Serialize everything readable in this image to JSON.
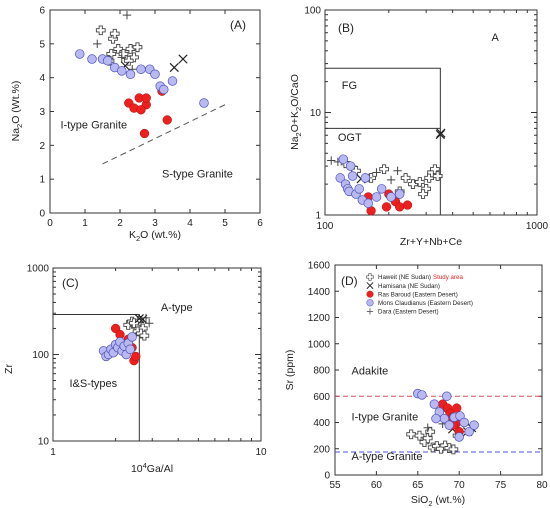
{
  "chart_data": [
    {
      "panel": "A",
      "type": "scatter",
      "panel_label": "(A)",
      "xlabel": "K2O (wt.%)",
      "xlabel_main": "K",
      "xlabel_sub": "2",
      "xlabel_post": "O (wt.%)",
      "ylabel": "Na2O (Wt.%)",
      "ylabel_main": "Na",
      "ylabel_sub": "2",
      "ylabel_post": "O (Wt.%)",
      "xlim": [
        0,
        6
      ],
      "ylim": [
        0,
        6
      ],
      "xticks": [
        "0",
        "1",
        "2",
        "3",
        "4",
        "5",
        "6"
      ],
      "yticks": [
        "0",
        "1",
        "2",
        "3",
        "4",
        "5",
        "6"
      ],
      "annotations": [
        {
          "text": "I-type Granite",
          "x": 0.3,
          "y": 2.5
        },
        {
          "text": "S-type Granite",
          "x": 3.2,
          "y": 1.05
        }
      ],
      "boundary": [
        [
          1.5,
          1.45
        ],
        [
          5.0,
          3.2
        ]
      ],
      "series": [
        {
          "marker": "hawe",
          "points": [
            [
              1.45,
              5.4
            ],
            [
              1.8,
              5.15
            ],
            [
              1.75,
              4.7
            ],
            [
              1.85,
              5.3
            ],
            [
              1.95,
              4.85
            ],
            [
              2.1,
              4.7
            ],
            [
              2.3,
              4.85
            ],
            [
              2.4,
              4.6
            ],
            [
              2.5,
              4.9
            ],
            [
              1.7,
              4.5
            ],
            [
              2.25,
              4.5
            ]
          ]
        },
        {
          "marker": "x",
          "points": [
            [
              2.15,
              4.35
            ],
            [
              3.55,
              4.3
            ],
            [
              3.8,
              4.55
            ]
          ]
        },
        {
          "marker": "plus",
          "points": [
            [
              2.2,
              5.85
            ],
            [
              1.35,
              5.0
            ],
            [
              2.05,
              4.6
            ],
            [
              2.35,
              4.25
            ]
          ]
        },
        {
          "marker": "ras",
          "points": [
            [
              2.25,
              3.25
            ],
            [
              2.4,
              3.1
            ],
            [
              2.55,
              3.4
            ],
            [
              2.75,
              3.2
            ],
            [
              2.75,
              3.4
            ],
            [
              3.2,
              3.6
            ],
            [
              3.35,
              2.75
            ],
            [
              2.7,
              2.35
            ],
            [
              2.6,
              3.05
            ]
          ]
        },
        {
          "marker": "mons",
          "points": [
            [
              0.85,
              4.7
            ],
            [
              1.2,
              4.55
            ],
            [
              1.5,
              4.55
            ],
            [
              1.65,
              4.5
            ],
            [
              1.85,
              4.3
            ],
            [
              2.05,
              4.2
            ],
            [
              2.6,
              4.25
            ],
            [
              2.85,
              4.25
            ],
            [
              3.0,
              4.1
            ],
            [
              3.15,
              3.75
            ],
            [
              3.25,
              3.65
            ],
            [
              3.5,
              3.9
            ],
            [
              4.4,
              3.25
            ],
            [
              2.3,
              4.1
            ]
          ]
        }
      ]
    },
    {
      "panel": "B",
      "type": "scatter",
      "panel_label": "(B)",
      "xlabel": "Zr+Y+Nb+Ce",
      "ylabel": "Na2O+K2O/CaO",
      "ylabel_parts": [
        "Na",
        "2",
        "O+K",
        "2",
        "O/CaO"
      ],
      "x_scale": "log",
      "y_scale": "log",
      "xlim": [
        100,
        1000
      ],
      "ylim": [
        1,
        100
      ],
      "xticks": [
        "100",
        "1000"
      ],
      "yticks": [
        "1",
        "10",
        "100"
      ],
      "field_labels": [
        {
          "text": "A",
          "x": 610,
          "y": 50
        },
        {
          "text": "FG",
          "x": 120,
          "y": 17
        },
        {
          "text": "OGT",
          "x": 115,
          "y": 5.3
        }
      ],
      "boundaries": [
        [
          [
            100,
            27
          ],
          [
            350,
            27
          ],
          [
            350,
            1
          ]
        ],
        [
          [
            100,
            7
          ],
          [
            350,
            7
          ]
        ]
      ],
      "series": [
        {
          "marker": "hawe",
          "points": [
            [
              125,
              3.2
            ],
            [
              140,
              2.7
            ],
            [
              165,
              2.3
            ],
            [
              190,
              2.8
            ],
            [
              240,
              2.3
            ],
            [
              260,
              2.0
            ],
            [
              280,
              2.1
            ],
            [
              300,
              1.8
            ],
            [
              310,
              2.3
            ],
            [
              320,
              2.6
            ],
            [
              330,
              2.8
            ],
            [
              340,
              2.4
            ],
            [
              290,
              1.6
            ],
            [
              225,
              1.7
            ]
          ]
        },
        {
          "marker": "x",
          "points": [
            [
              148,
              2.25
            ],
            [
              350,
              6.1
            ],
            [
              352,
              6.3
            ]
          ]
        },
        {
          "marker": "plus",
          "points": [
            [
              107,
              3.4
            ],
            [
              115,
              3.3
            ],
            [
              135,
              3.0
            ],
            [
              175,
              2.6
            ],
            [
              205,
              2.2
            ],
            [
              220,
              2.7
            ],
            [
              160,
              2.3
            ]
          ]
        },
        {
          "marker": "ras",
          "points": [
            [
              160,
              1.5
            ],
            [
              165,
              1.1
            ],
            [
              200,
              1.6
            ],
            [
              215,
              1.35
            ],
            [
              225,
              1.2
            ],
            [
              245,
              1.25
            ],
            [
              195,
              1.2
            ]
          ]
        },
        {
          "marker": "mons",
          "points": [
            [
              118,
              2.3
            ],
            [
              122,
              3.5
            ],
            [
              125,
              2.0
            ],
            [
              128,
              1.8
            ],
            [
              130,
              1.7
            ],
            [
              132,
              3.0
            ],
            [
              135,
              2.4
            ],
            [
              140,
              1.6
            ],
            [
              145,
              1.8
            ],
            [
              150,
              1.4
            ],
            [
              155,
              2.3
            ],
            [
              160,
              1.3
            ],
            [
              175,
              1.5
            ],
            [
              185,
              1.8
            ],
            [
              205,
              1.5
            ],
            [
              225,
              1.6
            ]
          ]
        }
      ]
    },
    {
      "panel": "C",
      "type": "scatter",
      "panel_label": "(C)",
      "xlabel": "10^4Ga/Al",
      "xlabel_base": "10",
      "xlabel_sup": "4",
      "xlabel_post": "Ga/Al",
      "ylabel": "Zr",
      "x_scale": "log",
      "y_scale": "log",
      "xlim": [
        1,
        10
      ],
      "ylim": [
        10,
        1000
      ],
      "xticks": [
        "1",
        "10"
      ],
      "yticks": [
        "10",
        "100",
        "1000"
      ],
      "annotations": [
        {
          "text": "A-type",
          "x": 3.3,
          "y": 320
        },
        {
          "text": "I&S-types",
          "x": 1.2,
          "y": 42
        }
      ],
      "boundaries": [
        [
          [
            1,
            290
          ],
          [
            2.6,
            290
          ],
          [
            2.6,
            10
          ]
        ]
      ],
      "series": [
        {
          "marker": "hawe",
          "points": [
            [
              2.3,
              220
            ],
            [
              2.4,
              240
            ],
            [
              2.5,
              210
            ],
            [
              2.6,
              245
            ],
            [
              2.7,
              200
            ],
            [
              2.55,
              185
            ],
            [
              2.65,
              175
            ],
            [
              2.75,
              165
            ],
            [
              2.45,
              230
            ]
          ]
        },
        {
          "marker": "x",
          "points": [
            [
              2.6,
              260
            ],
            [
              2.7,
              255
            ]
          ]
        },
        {
          "marker": "plus",
          "points": [
            [
              2.8,
              265
            ],
            [
              2.9,
              230
            ]
          ]
        },
        {
          "marker": "ras",
          "points": [
            [
              2.0,
              200
            ],
            [
              2.1,
              170
            ],
            [
              2.2,
              130
            ],
            [
              2.3,
              150
            ],
            [
              2.4,
              120
            ],
            [
              2.45,
              85
            ],
            [
              2.5,
              95
            ]
          ]
        },
        {
          "marker": "mons",
          "points": [
            [
              1.75,
              110
            ],
            [
              1.8,
              95
            ],
            [
              1.85,
              100
            ],
            [
              1.9,
              115
            ],
            [
              1.95,
              105
            ],
            [
              2.0,
              130
            ],
            [
              2.05,
              120
            ],
            [
              2.1,
              140
            ],
            [
              2.15,
              110
            ],
            [
              2.2,
              125
            ],
            [
              2.25,
              100
            ],
            [
              2.3,
              135
            ],
            [
              2.35,
              115
            ],
            [
              2.4,
              160
            ]
          ]
        }
      ]
    },
    {
      "panel": "D",
      "type": "scatter",
      "panel_label": "(D)",
      "xlabel": "SiO2 (wt.%)",
      "xlabel_main": "SiO",
      "xlabel_sub": "2",
      "xlabel_post": " (wt.%)",
      "ylabel": "Sr (ppm)",
      "xlim": [
        55,
        80
      ],
      "ylim": [
        0,
        1600
      ],
      "xticks": [
        "55",
        "60",
        "65",
        "70",
        "75",
        "80"
      ],
      "yticks": [
        "0",
        "200",
        "400",
        "600",
        "800",
        "1000",
        "1200",
        "1400",
        "1600"
      ],
      "annotations": [
        {
          "text": "Adakite",
          "x": 57,
          "y": 765
        },
        {
          "text": "I-type Granite",
          "x": 57,
          "y": 415
        },
        {
          "text": "A-type Granite",
          "x": 57,
          "y": 115
        }
      ],
      "reference_lines": [
        {
          "y": 600,
          "color": "#e05050"
        },
        {
          "y": 175,
          "color": "#5050e0"
        }
      ],
      "legend_position": "top-right",
      "legend": [
        {
          "marker": "hawe",
          "label": "Haweit (NE Sudan)",
          "extra": "Study area",
          "extra_color": "#e8231c"
        },
        {
          "marker": "x",
          "label": "Hamisana (NE Sudan)"
        },
        {
          "marker": "ras",
          "label": "Ras Baroud (Eastern Desert)"
        },
        {
          "marker": "mons",
          "label": "Mons Claudianus (Eastern Desert)"
        },
        {
          "marker": "plus",
          "label": "Dara (Eastern Desert)"
        }
      ],
      "series": [
        {
          "marker": "hawe",
          "points": [
            [
              64.2,
              310
            ],
            [
              65.2,
              300
            ],
            [
              65.8,
              250
            ],
            [
              66.2,
              280
            ],
            [
              66.8,
              210
            ],
            [
              67.3,
              220
            ],
            [
              67.8,
              200
            ],
            [
              68.3,
              225
            ],
            [
              68.8,
              205
            ],
            [
              69.3,
              195
            ],
            [
              66.5,
              330
            ],
            [
              69.8,
              300
            ]
          ]
        },
        {
          "marker": "x",
          "points": [
            [
              68.5,
              470
            ],
            [
              69.5,
              440
            ],
            [
              69.2,
              350
            ],
            [
              71.0,
              330
            ],
            [
              71.5,
              360
            ]
          ]
        },
        {
          "marker": "plus",
          "points": [
            [
              66.2,
              360
            ],
            [
              68.0,
              390
            ],
            [
              70.2,
              330
            ]
          ]
        },
        {
          "marker": "ras",
          "points": [
            [
              68.0,
              540
            ],
            [
              68.6,
              510
            ],
            [
              68.9,
              470
            ],
            [
              69.2,
              440
            ],
            [
              69.6,
              390
            ],
            [
              70.0,
              330
            ],
            [
              69.3,
              380
            ],
            [
              69.7,
              510
            ]
          ]
        },
        {
          "marker": "mons",
          "points": [
            [
              65.0,
              620
            ],
            [
              65.5,
              610
            ],
            [
              67.0,
              540
            ],
            [
              67.6,
              480
            ],
            [
              68.2,
              430
            ],
            [
              68.8,
              380
            ],
            [
              69.4,
              440
            ],
            [
              70.1,
              450
            ],
            [
              70.6,
              400
            ],
            [
              71.2,
              330
            ],
            [
              71.8,
              380
            ],
            [
              68.5,
              600
            ],
            [
              70.0,
              290
            ],
            [
              67.2,
              430
            ]
          ]
        }
      ]
    }
  ],
  "colors": {
    "ras": "#ee1f1f",
    "mons": "#b8b9f2",
    "mons_edge": "#4e52b8",
    "hawe_fill": "#ffffff",
    "hawe_edge": "#444444",
    "x": "#222222",
    "plus": "#444444",
    "dash": "#555555"
  }
}
